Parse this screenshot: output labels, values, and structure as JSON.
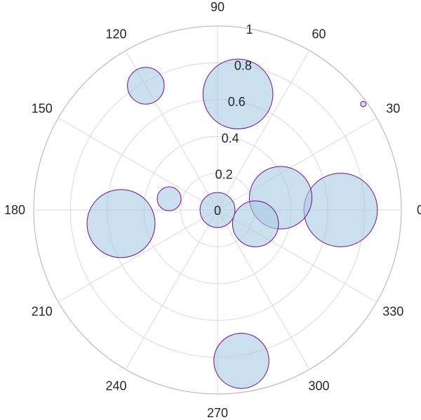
{
  "chart_data": {
    "type": "scatter",
    "subtype": "polar-bubble",
    "theta_unit": "degrees",
    "theta_ticks": [
      "0",
      "30",
      "60",
      "90",
      "120",
      "150",
      "180",
      "210",
      "240",
      "270",
      "300",
      "330"
    ],
    "r_ticks": [
      "0",
      "0.2",
      "0.4",
      "0.6",
      "0.8",
      "1"
    ],
    "rlim": [
      0,
      1
    ],
    "grid": true,
    "series": [
      {
        "points": [
          {
            "theta": 0,
            "r": 0.67,
            "size": 0.4
          },
          {
            "theta": 11,
            "r": 0.35,
            "size": 0.34
          },
          {
            "theta": 340,
            "r": 0.22,
            "size": 0.25
          },
          {
            "theta": 0,
            "r": 0.0,
            "size": 0.19
          },
          {
            "theta": 167,
            "r": 0.27,
            "size": 0.13
          },
          {
            "theta": 188,
            "r": 0.53,
            "size": 0.37
          },
          {
            "theta": 120,
            "r": 0.78,
            "size": 0.2
          },
          {
            "theta": 80,
            "r": 0.64,
            "size": 0.38
          },
          {
            "theta": 36,
            "r": 0.98,
            "size": 0.03
          },
          {
            "theta": 279,
            "r": 0.83,
            "size": 0.3
          }
        ]
      }
    ],
    "colors": {
      "fill": "#a9cce3",
      "edge": "#7b0a8c",
      "grid": "#d9d9d9",
      "outer_ring": "#b0b0b0"
    }
  }
}
